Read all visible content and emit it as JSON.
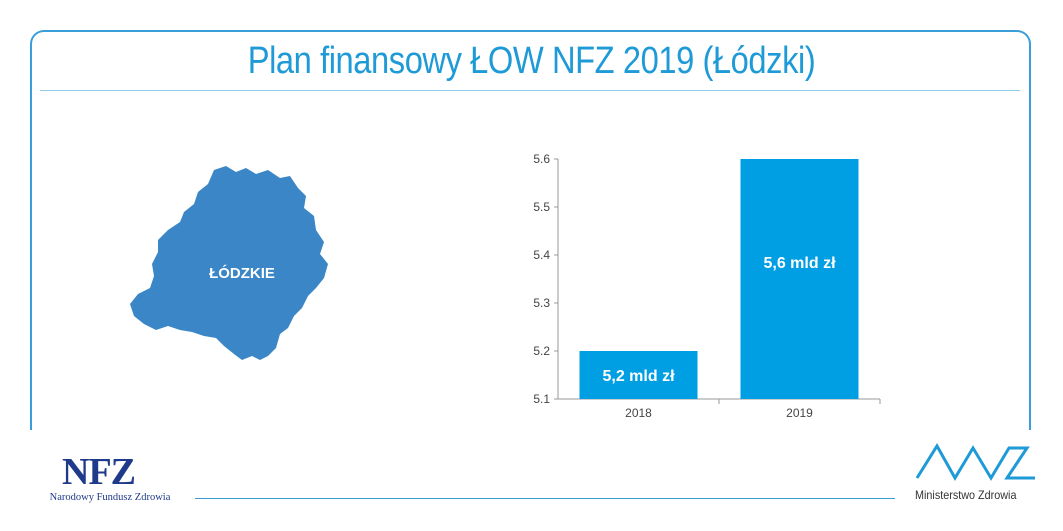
{
  "title": "Plan finansowy ŁOW NFZ 2019 (Łódzki)",
  "map": {
    "region_label": "ŁÓDZKIE",
    "fill_color": "#3a86c6"
  },
  "chart_data": {
    "type": "bar",
    "categories": [
      "2018",
      "2019"
    ],
    "values": [
      5.2,
      5.6
    ],
    "data_labels": [
      "5,2 mld zł",
      "5,6 mld zł"
    ],
    "ylim": [
      5.1,
      5.6
    ],
    "yticks": [
      "5.1",
      "5.2",
      "5.3",
      "5.4",
      "5.5",
      "5.6"
    ],
    "xlabel": "",
    "ylabel": "",
    "bar_color": "#009fe3",
    "grid": false,
    "legend": "none"
  },
  "logos": {
    "nfz_mark": "NFZ",
    "nfz_name": "Narodowy Fundusz Zdrowia",
    "mz_name": "Ministerstwo Zdrowia"
  },
  "colors": {
    "accent": "#1e9ad6",
    "frame": "#3a9fd8",
    "nfz_blue": "#1f3a8a"
  }
}
